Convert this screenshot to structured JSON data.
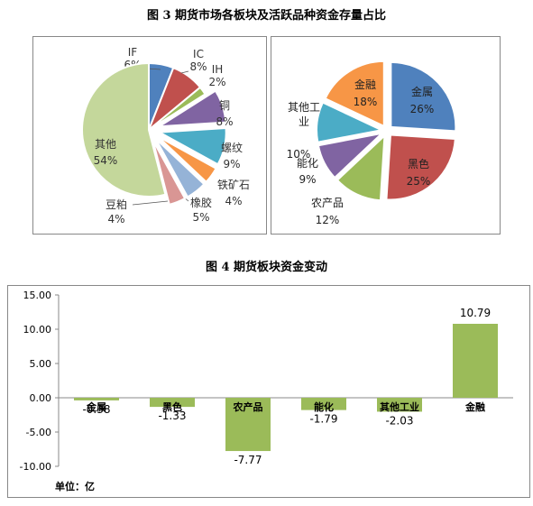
{
  "titles": {
    "fig3": "图 3 期货市场各板块及活跃品种资金存量占比",
    "fig4": "图 4 期货板块资金变动"
  },
  "chart_data": [
    {
      "type": "pie",
      "slices": [
        {
          "label": "IF",
          "value": 6,
          "pct": "6%",
          "color": "#4f81bd"
        },
        {
          "label": "IC",
          "value": 8,
          "pct": "8%",
          "color": "#c0504d"
        },
        {
          "label": "IH",
          "value": 2,
          "pct": "2%",
          "color": "#9bbb59"
        },
        {
          "label": "铜",
          "value": 8,
          "pct": "8%",
          "color": "#8064a2"
        },
        {
          "label": "螺纹",
          "value": 9,
          "pct": "9%",
          "color": "#4bacc6"
        },
        {
          "label": "铁矿石",
          "value": 4,
          "pct": "4%",
          "color": "#f79646"
        },
        {
          "label": "橡胶",
          "value": 5,
          "pct": "5%",
          "color": "#95b3d7"
        },
        {
          "label": "豆粕",
          "value": 4,
          "pct": "4%",
          "color": "#d99694"
        },
        {
          "label": "其他",
          "value": 54,
          "pct": "54%",
          "color": "#c4d79b"
        }
      ]
    },
    {
      "type": "pie",
      "slices": [
        {
          "label": "金属",
          "value": 26,
          "pct": "26%",
          "color": "#4f81bd"
        },
        {
          "label": "黑色",
          "value": 25,
          "pct": "25%",
          "color": "#c0504d"
        },
        {
          "label": "农产品",
          "value": 12,
          "pct": "12%",
          "color": "#9bbb59"
        },
        {
          "label": "能化",
          "value": 9,
          "pct": "9%",
          "color": "#8064a2"
        },
        {
          "label": "其他工业",
          "value": 10,
          "pct": "10%",
          "color": "#4bacc6"
        },
        {
          "label": "金融",
          "value": 18,
          "pct": "18%",
          "color": "#f79646"
        }
      ]
    },
    {
      "type": "bar",
      "categories": [
        "金属",
        "黑色",
        "农产品",
        "能化",
        "其他工业",
        "金融"
      ],
      "values": [
        -0.38,
        -1.33,
        -7.77,
        -1.79,
        -2.03,
        10.79
      ],
      "value_labels": [
        "-0.38",
        "-1.33",
        "-7.77",
        "-1.79",
        "-2.03",
        "10.79"
      ],
      "yticks": [
        "15.00",
        "10.00",
        "5.00",
        "0.00",
        "-5.00",
        "-10.00"
      ],
      "ylim": [
        -10,
        15
      ],
      "unit_note": "单位：亿",
      "bar_color": "#9bbb59",
      "grid": false
    }
  ]
}
